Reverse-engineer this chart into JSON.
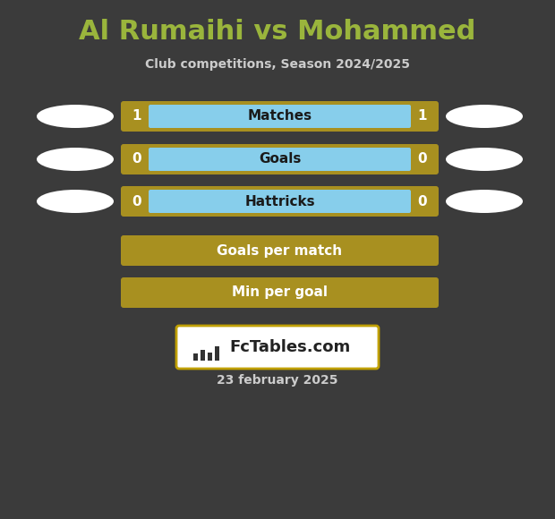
{
  "title": "Al Rumaihi vs Mohammed",
  "subtitle": "Club competitions, Season 2024/2025",
  "date": "23 february 2025",
  "background_color": "#3b3b3b",
  "title_color": "#9ab53c",
  "subtitle_color": "#cccccc",
  "date_color": "#cccccc",
  "rows": [
    {
      "label": "Matches",
      "left_val": "1",
      "right_val": "1",
      "has_values": true,
      "bar_color": "#87ceeb",
      "border_color": "#a89020"
    },
    {
      "label": "Goals",
      "left_val": "0",
      "right_val": "0",
      "has_values": true,
      "bar_color": "#87ceeb",
      "border_color": "#a89020"
    },
    {
      "label": "Hattricks",
      "left_val": "0",
      "right_val": "0",
      "has_values": true,
      "bar_color": "#87ceeb",
      "border_color": "#a89020"
    },
    {
      "label": "Goals per match",
      "left_val": "",
      "right_val": "",
      "has_values": false,
      "bar_color": "#a89020",
      "border_color": "#a89020"
    },
    {
      "label": "Min per goal",
      "left_val": "",
      "right_val": "",
      "has_values": false,
      "bar_color": "#a89020",
      "border_color": "#a89020"
    }
  ],
  "ellipse_color": "#ffffff",
  "logo_text": "FcTables.com",
  "logo_bg": "#ffffff",
  "logo_border": "#c0a000",
  "title_fontsize": 22,
  "subtitle_fontsize": 10,
  "row_label_fontsize": 11,
  "row_val_fontsize": 11,
  "date_fontsize": 10
}
